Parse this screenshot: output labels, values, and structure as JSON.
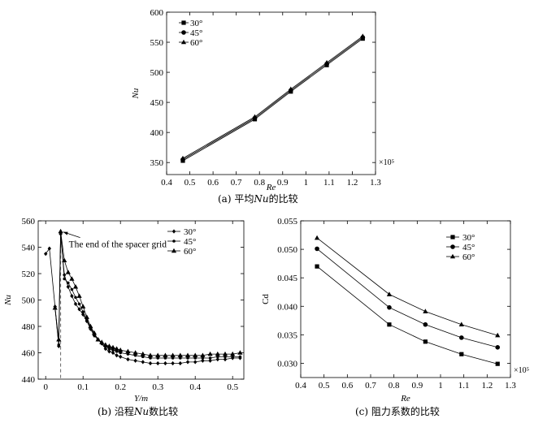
{
  "figure": {
    "colors": {
      "line": "#000000",
      "vline": "#666666"
    },
    "captions": [
      {
        "prefix": "(a) 平均",
        "italic": "Nu",
        "suffix": "的比较"
      },
      {
        "prefix": "(b) 沿程",
        "italic": "Nu",
        "suffix": "数比较"
      },
      {
        "prefix": "(c) 阻力系数的比较",
        "italic": "",
        "suffix": ""
      }
    ]
  },
  "chart_data": [
    {
      "id": "a",
      "type": "line",
      "title": "(a) 平均Nu的比较",
      "xlabel": "Re",
      "ylabel": "Nu",
      "x_multiplier": "×10⁵",
      "xlim": [
        0.4,
        1.3
      ],
      "ylim": [
        330,
        600
      ],
      "xticks": [
        0.4,
        0.5,
        0.6,
        0.7,
        0.8,
        0.9,
        1.0,
        1.1,
        1.2,
        1.3
      ],
      "yticks": [
        350,
        400,
        450,
        500,
        550,
        600
      ],
      "legend": "top-left",
      "series": [
        {
          "name": "30°",
          "marker": "square",
          "x": [
            0.47,
            0.78,
            0.935,
            1.09,
            1.245
          ],
          "y": [
            353,
            422,
            468,
            512,
            556
          ]
        },
        {
          "name": "45°",
          "marker": "circle",
          "x": [
            0.47,
            0.78,
            0.935,
            1.09,
            1.245
          ],
          "y": [
            355,
            424,
            470,
            514,
            558
          ]
        },
        {
          "name": "60°",
          "marker": "triangle",
          "x": [
            0.47,
            0.78,
            0.935,
            1.09,
            1.245
          ],
          "y": [
            357,
            426,
            472,
            516,
            560
          ]
        }
      ]
    },
    {
      "id": "b",
      "type": "line",
      "title": "(b) 沿程Nu数比较",
      "xlabel": "Y/m",
      "ylabel": "Nu",
      "xlim": [
        -0.02,
        0.53
      ],
      "ylim": [
        440,
        560
      ],
      "xticks": [
        0,
        0.1,
        0.2,
        0.3,
        0.4,
        0.5
      ],
      "yticks": [
        440,
        460,
        480,
        500,
        520,
        540,
        560
      ],
      "legend": "top-right",
      "annotation": {
        "text": "The end of the spacer grid",
        "x": 0.04,
        "y": 551
      },
      "vline_x": 0.04,
      "series": [
        {
          "name": "30°",
          "marker": "diamond",
          "x": [
            0,
            0.01,
            0.025,
            0.035,
            0.04,
            0.05,
            0.06,
            0.07,
            0.08,
            0.09,
            0.1,
            0.11,
            0.12,
            0.13,
            0.14,
            0.15,
            0.16,
            0.17,
            0.18,
            0.19,
            0.2,
            0.22,
            0.24,
            0.26,
            0.28,
            0.3,
            0.32,
            0.34,
            0.36,
            0.38,
            0.4,
            0.42,
            0.44,
            0.46,
            0.48,
            0.5,
            0.52
          ],
          "y": [
            535,
            539,
            495,
            465,
            550,
            519,
            510,
            503,
            497,
            493,
            489,
            484,
            478,
            473,
            470,
            467,
            463,
            461,
            460,
            458,
            457,
            455,
            454,
            453,
            452,
            452,
            452,
            452,
            452,
            453,
            453,
            454,
            454,
            455,
            455,
            456,
            456
          ]
        },
        {
          "name": "45°",
          "marker": "dot",
          "x": [
            0.025,
            0.035,
            0.04,
            0.05,
            0.06,
            0.07,
            0.08,
            0.09,
            0.1,
            0.11,
            0.12,
            0.13,
            0.14,
            0.15,
            0.16,
            0.17,
            0.18,
            0.19,
            0.2,
            0.22,
            0.24,
            0.26,
            0.28,
            0.3,
            0.32,
            0.34,
            0.36,
            0.38,
            0.4,
            0.42,
            0.44,
            0.46,
            0.48,
            0.5,
            0.52
          ],
          "y": [
            494,
            466,
            551,
            516,
            513,
            508,
            502,
            497,
            491,
            485,
            479,
            474,
            470,
            467,
            465,
            463,
            462,
            461,
            460,
            459,
            458,
            457,
            456,
            456,
            456,
            456,
            456,
            456,
            456,
            456,
            456,
            457,
            457,
            457,
            457
          ]
        },
        {
          "name": "60°",
          "marker": "triangle",
          "x": [
            0.025,
            0.035,
            0.04,
            0.05,
            0.06,
            0.07,
            0.08,
            0.09,
            0.1,
            0.11,
            0.12,
            0.13,
            0.14,
            0.15,
            0.16,
            0.17,
            0.18,
            0.19,
            0.2,
            0.22,
            0.24,
            0.26,
            0.28,
            0.3,
            0.32,
            0.34,
            0.36,
            0.38,
            0.4,
            0.42,
            0.44,
            0.46,
            0.48,
            0.5,
            0.52
          ],
          "y": [
            494,
            470,
            552,
            530,
            521,
            516,
            510,
            503,
            495,
            487,
            480,
            475,
            470,
            468,
            466,
            465,
            464,
            463,
            462,
            461,
            460,
            459,
            458,
            458,
            458,
            458,
            458,
            458,
            458,
            458,
            459,
            459,
            459,
            459,
            460
          ]
        }
      ]
    },
    {
      "id": "c",
      "type": "line",
      "title": "(c) 阻力系数的比较",
      "xlabel": "Re",
      "ylabel": "Cd",
      "x_multiplier": "×10⁵",
      "xlim": [
        0.4,
        1.3
      ],
      "ylim": [
        0.0275,
        0.055
      ],
      "xticks": [
        0.4,
        0.5,
        0.6,
        0.7,
        0.8,
        0.9,
        1.0,
        1.1,
        1.2,
        1.3
      ],
      "yticks": [
        0.03,
        0.035,
        0.04,
        0.045,
        0.05,
        0.055
      ],
      "ytick_decimals": 3,
      "legend": "top-right",
      "series": [
        {
          "name": "30°",
          "marker": "square",
          "x": [
            0.47,
            0.78,
            0.935,
            1.09,
            1.245
          ],
          "y": [
            0.047,
            0.0368,
            0.0338,
            0.0316,
            0.0299
          ]
        },
        {
          "name": "45°",
          "marker": "circle",
          "x": [
            0.47,
            0.78,
            0.935,
            1.09,
            1.245
          ],
          "y": [
            0.0501,
            0.0398,
            0.0368,
            0.0345,
            0.0328
          ]
        },
        {
          "name": "60°",
          "marker": "triangle",
          "x": [
            0.47,
            0.78,
            0.935,
            1.09,
            1.245
          ],
          "y": [
            0.052,
            0.0421,
            0.0391,
            0.0368,
            0.0349
          ]
        }
      ]
    }
  ]
}
